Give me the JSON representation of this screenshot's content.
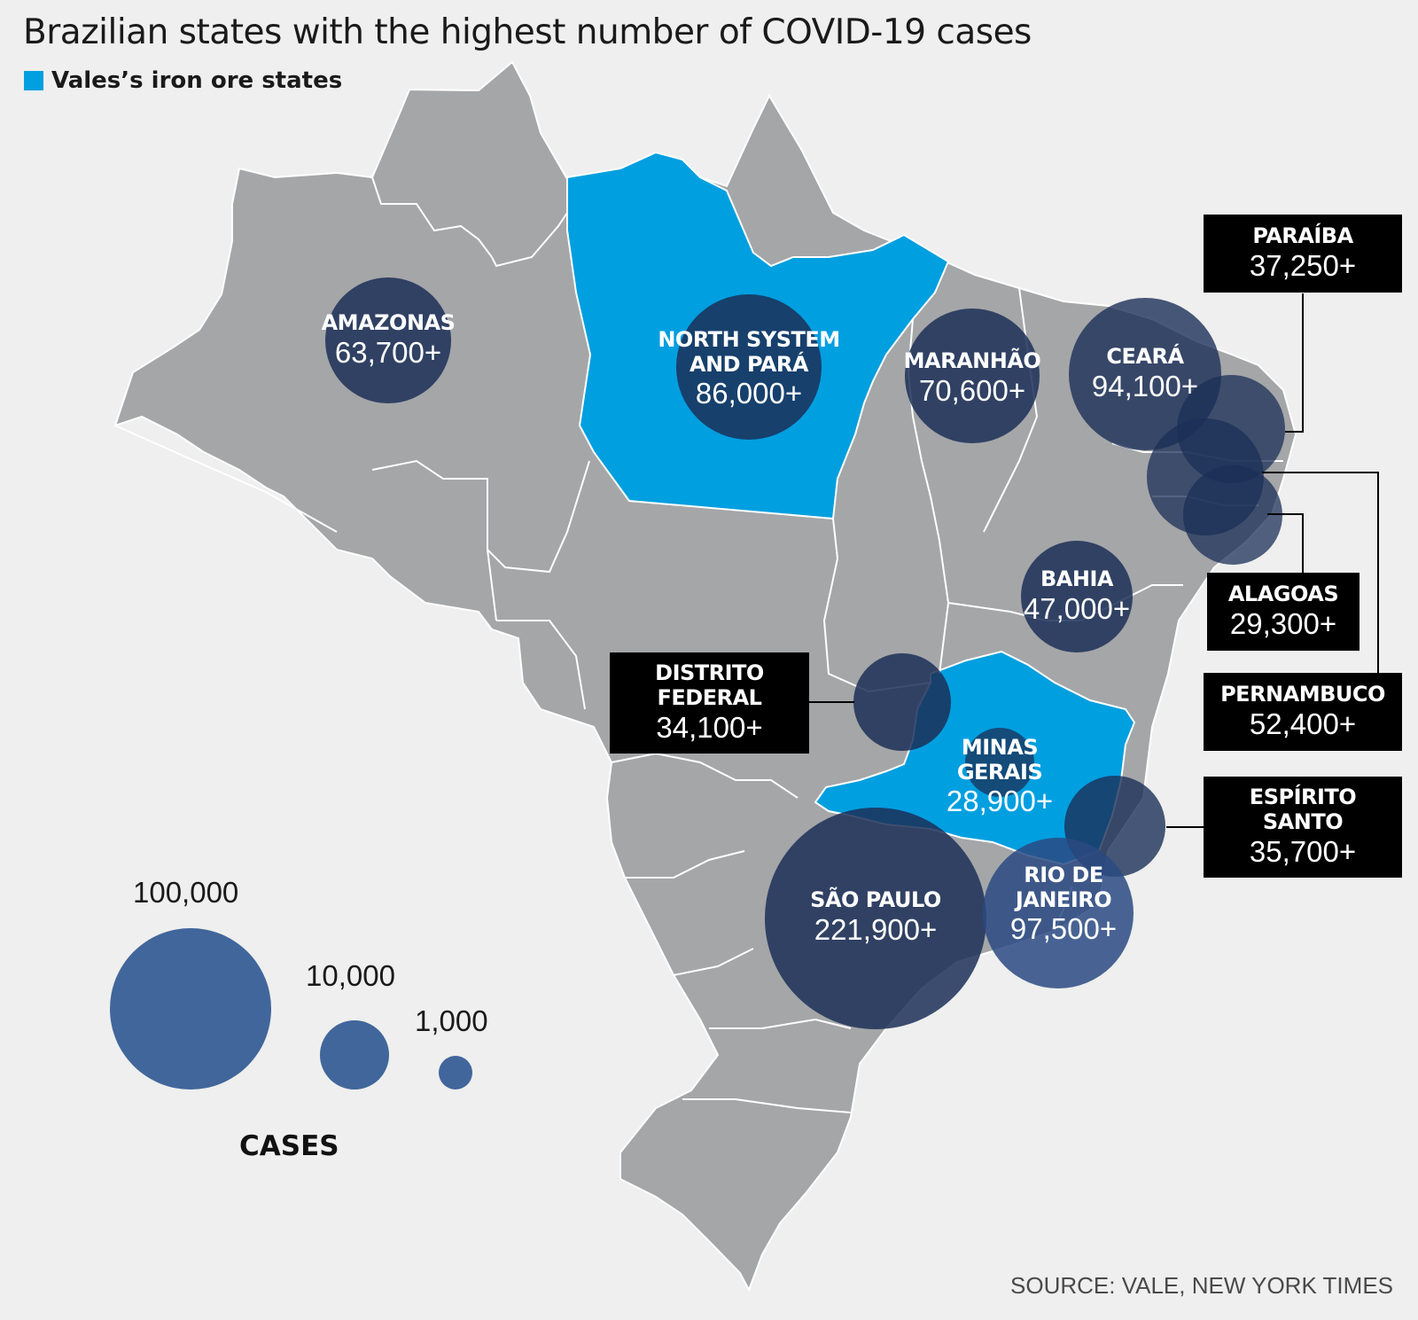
{
  "title": "Brazilian states with the highest number of COVID-19 cases",
  "legend": {
    "label": "Vales’s iron ore states",
    "color": "#009fe0"
  },
  "colors": {
    "background": "#eeefee",
    "land": "#a5a6a8",
    "border": "#ffffff",
    "highlight": "#009fe0",
    "bubble_dark": "#1b2f57",
    "bubble_mid": "#2a4a82",
    "scale_bubble": "#41669b",
    "callout_box": "#000000"
  },
  "states": [
    {
      "name": "AMAZONAS",
      "cases": "63,700+"
    },
    {
      "name": "NORTH SYSTEM AND PARÁ",
      "line1": "NORTH SYSTEM",
      "line2": "AND PARÁ",
      "cases": "86,000+"
    },
    {
      "name": "MARANHÃO",
      "cases": "70,600+"
    },
    {
      "name": "CEARÁ",
      "cases": "94,100+"
    },
    {
      "name": "PARAÍBA",
      "cases": "37,250+"
    },
    {
      "name": "ALAGOAS",
      "cases": "29,300+"
    },
    {
      "name": "PERNAMBUCO",
      "cases": "52,400+"
    },
    {
      "name": "BAHIA",
      "cases": "47,000+"
    },
    {
      "name": "DISTRITO FEDERAL",
      "line1": "DISTRITO",
      "line2": "FEDERAL",
      "cases": "34,100+"
    },
    {
      "name": "MINAS GERAIS",
      "line1": "MINAS",
      "line2": "GERAIS",
      "cases": "28,900+"
    },
    {
      "name": "ESPÍRITO SANTO",
      "line1": "ESPÍRITO",
      "line2": "SANTO",
      "cases": "35,700+"
    },
    {
      "name": "SÃO PAULO",
      "cases": "221,900+"
    },
    {
      "name": "RIO DE JANEIRO",
      "line1": "RIO DE",
      "line2": "JANEIRO",
      "cases": "97,500+"
    }
  ],
  "scale": {
    "title": "CASES",
    "items": [
      {
        "label": "100,000",
        "value": 100000
      },
      {
        "label": "10,000",
        "value": 10000
      },
      {
        "label": "1,000",
        "value": 1000
      }
    ]
  },
  "source": "SOURCE: VALE, NEW YORK TIMES"
}
